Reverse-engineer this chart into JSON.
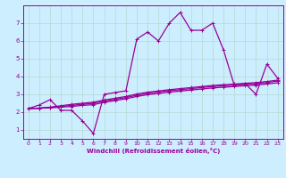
{
  "bg_color": "#cceeff",
  "grid_color": "#b8ddd8",
  "line_color": "#990099",
  "xlabel": "Windchill (Refroidissement éolien,°C)",
  "xlim": [
    -0.5,
    23.5
  ],
  "ylim": [
    0.5,
    8.0
  ],
  "xticks": [
    0,
    1,
    2,
    3,
    4,
    5,
    6,
    7,
    8,
    9,
    10,
    11,
    12,
    13,
    14,
    15,
    16,
    17,
    18,
    19,
    20,
    21,
    22,
    23
  ],
  "yticks": [
    1,
    2,
    3,
    4,
    5,
    6,
    7
  ],
  "series": [
    {
      "x": [
        0,
        1,
        2,
        3,
        4,
        5,
        6,
        7,
        8,
        9,
        10,
        11,
        12,
        13,
        14,
        15,
        16,
        17,
        18,
        19,
        20,
        21,
        22,
        23
      ],
      "y": [
        2.2,
        2.4,
        2.7,
        2.1,
        2.1,
        1.5,
        0.8,
        3.0,
        3.1,
        3.2,
        6.1,
        6.5,
        6.0,
        7.0,
        7.6,
        6.6,
        6.6,
        7.0,
        5.5,
        3.5,
        3.6,
        3.0,
        4.7,
        3.9
      ]
    },
    {
      "x": [
        0,
        1,
        2,
        3,
        4,
        5,
        6,
        7,
        8,
        9,
        10,
        11,
        12,
        13,
        14,
        15,
        16,
        17,
        18,
        19,
        20,
        21,
        22,
        23
      ],
      "y": [
        2.2,
        2.22,
        2.24,
        2.28,
        2.32,
        2.38,
        2.42,
        2.55,
        2.65,
        2.75,
        2.88,
        2.98,
        3.05,
        3.12,
        3.18,
        3.24,
        3.3,
        3.36,
        3.4,
        3.44,
        3.48,
        3.52,
        3.58,
        3.65
      ]
    },
    {
      "x": [
        0,
        1,
        2,
        3,
        4,
        5,
        6,
        7,
        8,
        9,
        10,
        11,
        12,
        13,
        14,
        15,
        16,
        17,
        18,
        19,
        20,
        21,
        22,
        23
      ],
      "y": [
        2.2,
        2.22,
        2.26,
        2.32,
        2.38,
        2.44,
        2.5,
        2.62,
        2.72,
        2.82,
        2.95,
        3.06,
        3.13,
        3.2,
        3.26,
        3.32,
        3.38,
        3.44,
        3.48,
        3.52,
        3.56,
        3.6,
        3.66,
        3.75
      ]
    },
    {
      "x": [
        0,
        1,
        2,
        3,
        4,
        5,
        6,
        7,
        8,
        9,
        10,
        11,
        12,
        13,
        14,
        15,
        16,
        17,
        18,
        19,
        20,
        21,
        22,
        23
      ],
      "y": [
        2.2,
        2.23,
        2.28,
        2.36,
        2.44,
        2.5,
        2.56,
        2.68,
        2.78,
        2.88,
        3.02,
        3.12,
        3.19,
        3.26,
        3.32,
        3.38,
        3.44,
        3.5,
        3.54,
        3.58,
        3.62,
        3.66,
        3.72,
        3.8
      ]
    }
  ]
}
